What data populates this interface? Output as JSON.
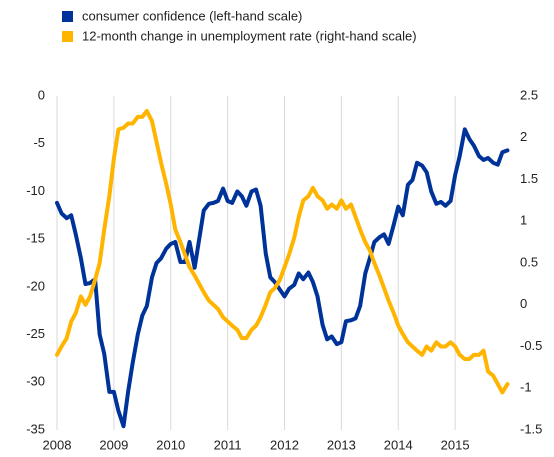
{
  "chart_data": {
    "type": "line",
    "x": [
      2008.0,
      2008.08,
      2008.17,
      2008.25,
      2008.33,
      2008.42,
      2008.5,
      2008.58,
      2008.67,
      2008.75,
      2008.83,
      2008.92,
      2009.0,
      2009.08,
      2009.17,
      2009.25,
      2009.33,
      2009.42,
      2009.5,
      2009.58,
      2009.67,
      2009.75,
      2009.83,
      2009.92,
      2010.0,
      2010.08,
      2010.17,
      2010.25,
      2010.33,
      2010.42,
      2010.5,
      2010.58,
      2010.67,
      2010.75,
      2010.83,
      2010.92,
      2011.0,
      2011.08,
      2011.17,
      2011.25,
      2011.33,
      2011.42,
      2011.5,
      2011.58,
      2011.67,
      2011.75,
      2011.83,
      2011.92,
      2012.0,
      2012.08,
      2012.17,
      2012.25,
      2012.33,
      2012.42,
      2012.5,
      2012.58,
      2012.67,
      2012.75,
      2012.83,
      2012.92,
      2013.0,
      2013.08,
      2013.17,
      2013.25,
      2013.33,
      2013.42,
      2013.5,
      2013.58,
      2013.67,
      2013.75,
      2013.83,
      2013.92,
      2014.0,
      2014.08,
      2014.17,
      2014.25,
      2014.33,
      2014.42,
      2014.5,
      2014.58,
      2014.67,
      2014.75,
      2014.83,
      2014.92,
      2015.0,
      2015.08,
      2015.17,
      2015.25,
      2015.33,
      2015.42,
      2015.5,
      2015.58,
      2015.67,
      2015.75,
      2015.83,
      2015.92
    ],
    "series": [
      {
        "name": "consumer confidence (left-hand scale)",
        "color": "#003399",
        "values": [
          -11.2,
          -12.3,
          -12.8,
          -12.5,
          -14.5,
          -17,
          -19.7,
          -19.6,
          -19.2,
          -25,
          -27,
          -31,
          -31,
          -33,
          -34.6,
          -31,
          -28,
          -25,
          -23,
          -22,
          -19,
          -17.5,
          -17,
          -16,
          -15.5,
          -15.3,
          -17.4,
          -17.4,
          -15.3,
          -18,
          -15,
          -12,
          -11.3,
          -11.2,
          -11,
          -9.7,
          -11,
          -11.2,
          -10,
          -10.5,
          -11.5,
          -10,
          -9.8,
          -11.5,
          -16.5,
          -19,
          -19.5,
          -20.3,
          -21,
          -20.2,
          -19.8,
          -18.6,
          -19.2,
          -18.5,
          -19.5,
          -21,
          -24,
          -25.5,
          -25.2,
          -26,
          -25.8,
          -23.6,
          -23.5,
          -23.3,
          -22,
          -18.6,
          -17,
          -15.3,
          -14.8,
          -14.5,
          -15.5,
          -13.5,
          -11.6,
          -12.5,
          -9.3,
          -8.8,
          -7,
          -7.3,
          -8,
          -10,
          -11.3,
          -11.1,
          -11.5,
          -11,
          -8.3,
          -6.3,
          -3.5,
          -4.5,
          -5.2,
          -6.3,
          -6.7,
          -6.5,
          -7,
          -7.2,
          -5.9,
          -5.7
        ]
      },
      {
        "name": "12-month change in unemployment rate (right-hand scale)",
        "color": "#ffb400",
        "axis": "y2",
        "values": [
          -0.6,
          -0.5,
          -0.4,
          -0.2,
          -0.1,
          0.1,
          0.0,
          0.1,
          0.3,
          0.5,
          0.9,
          1.3,
          1.75,
          2.1,
          2.12,
          2.17,
          2.17,
          2.25,
          2.25,
          2.32,
          2.2,
          1.95,
          1.7,
          1.45,
          1.2,
          0.9,
          0.75,
          0.6,
          0.45,
          0.35,
          0.25,
          0.15,
          0.05,
          0.0,
          -0.05,
          -0.15,
          -0.2,
          -0.25,
          -0.3,
          -0.4,
          -0.4,
          -0.3,
          -0.25,
          -0.15,
          0.0,
          0.15,
          0.2,
          0.3,
          0.45,
          0.6,
          0.8,
          1.05,
          1.25,
          1.3,
          1.4,
          1.3,
          1.25,
          1.15,
          1.2,
          1.15,
          1.25,
          1.15,
          1.2,
          1.05,
          0.9,
          0.75,
          0.65,
          0.5,
          0.35,
          0.2,
          0.05,
          -0.1,
          -0.25,
          -0.35,
          -0.45,
          -0.5,
          -0.55,
          -0.6,
          -0.5,
          -0.55,
          -0.45,
          -0.5,
          -0.5,
          -0.45,
          -0.5,
          -0.6,
          -0.65,
          -0.65,
          -0.6,
          -0.6,
          -0.55,
          -0.8,
          -0.85,
          -0.95,
          -1.05,
          -0.95
        ]
      }
    ],
    "xlim": [
      2008,
      2016
    ],
    "xticks": [
      2008,
      2009,
      2010,
      2011,
      2012,
      2013,
      2014,
      2015
    ],
    "ylim": [
      -35,
      0
    ],
    "yticks": [
      -35,
      -30,
      -25,
      -20,
      -15,
      -10,
      -5,
      0
    ],
    "y2lim": [
      -1.5,
      2.5
    ],
    "y2ticks": [
      -1.5,
      -1,
      -0.5,
      0,
      0.5,
      1,
      1.5,
      2,
      2.5
    ],
    "grid": "x",
    "legend": "top-left"
  }
}
